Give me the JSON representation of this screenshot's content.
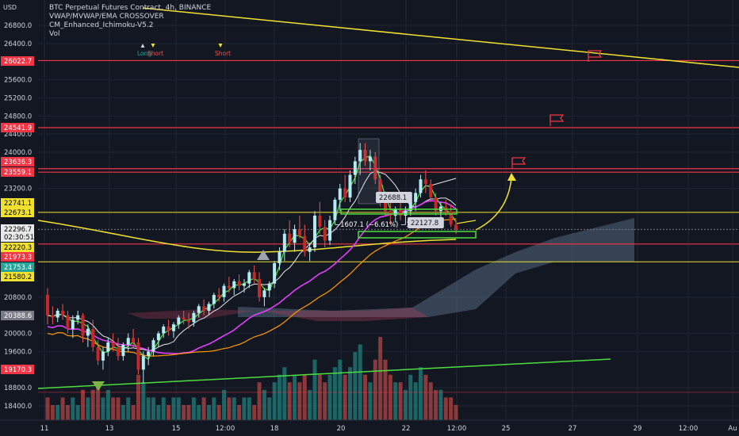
{
  "header": {
    "currency": "USD",
    "title": "BTC Perpetual Futures Contract, 4h, BINANCE",
    "indicators": [
      "VWAP/MVWAP/EMA CROSSOVER",
      "CM_Enhanced_Ichimoku-V5.2",
      "Vol"
    ]
  },
  "signals": [
    {
      "label": "Long",
      "color": "#26a69a",
      "marker": "triangle-up",
      "x_tick": "11"
    },
    {
      "label": "Short",
      "color": "#ef5350",
      "marker": "triangle-down",
      "x_tick": "11"
    },
    {
      "label": "Short",
      "color": "#ef5350",
      "marker": "triangle-down",
      "x_tick": "13"
    }
  ],
  "chart_data": {
    "type": "candlestick",
    "xlabel": "",
    "ylabel": "",
    "ylim": [
      18200,
      27000
    ],
    "y_ticks": [
      26800,
      26400,
      25600,
      25200,
      24800,
      24400,
      24000,
      23200,
      20800,
      20000,
      19600,
      18800,
      18400
    ],
    "x_ticks": [
      "11",
      "13",
      "15",
      "12:00",
      "18",
      "20",
      "22",
      "12:00",
      "25",
      "27",
      "29",
      "12:00",
      "Au"
    ],
    "price_labels": [
      {
        "value": "26022.7",
        "bg": "#f23645",
        "fg": "#ffffff"
      },
      {
        "value": "24541.9",
        "bg": "#f23645",
        "fg": "#ffffff"
      },
      {
        "value": "23636.3",
        "bg": "#f23645",
        "fg": "#ffffff"
      },
      {
        "value": "23559.1",
        "bg": "#f23645",
        "fg": "#ffffff"
      },
      {
        "value": "22741.1",
        "bg": "#f0e130",
        "fg": "#000000"
      },
      {
        "value": "22673.1",
        "bg": "#f0e130",
        "fg": "#000000"
      },
      {
        "value": "22296.7",
        "bg": "#e8e8e8",
        "fg": "#000000"
      },
      {
        "value": "02:30:51",
        "bg": "#e8e8e8",
        "fg": "#000000"
      },
      {
        "value": "22220.3",
        "bg": "#f0e130",
        "fg": "#000000"
      },
      {
        "value": "21973.3",
        "bg": "#f23645",
        "fg": "#ffffff"
      },
      {
        "value": "21753.4",
        "bg": "#26a69a",
        "fg": "#ffffff"
      },
      {
        "value": "21580.2",
        "bg": "#f0e130",
        "fg": "#000000"
      },
      {
        "value": "20388.6",
        "bg": "#787b86",
        "fg": "#ffffff"
      },
      {
        "value": "19170.3",
        "bg": "#f23645",
        "fg": "#ffffff"
      }
    ],
    "resistance_lines": [
      26022.7,
      24541.9,
      23636.3,
      23559.1,
      21973.3
    ],
    "support_lines": [
      22673.1,
      21580.2
    ],
    "annotations": [
      {
        "text": "22688.1",
        "value": 22688.1
      },
      {
        "text": "−1607.1 (−6.61%) −16071",
        "value": 22300
      },
      {
        "text": "22127.8",
        "value": 22127.8
      }
    ],
    "candles": [
      {
        "o": 20850,
        "h": 21000,
        "l": 20200,
        "c": 20400
      },
      {
        "o": 20400,
        "h": 20600,
        "l": 20200,
        "c": 20350
      },
      {
        "o": 20350,
        "h": 20550,
        "l": 20250,
        "c": 20500
      },
      {
        "o": 20500,
        "h": 20650,
        "l": 20300,
        "c": 20400
      },
      {
        "o": 20400,
        "h": 20500,
        "l": 20000,
        "c": 20100
      },
      {
        "o": 20100,
        "h": 20400,
        "l": 19900,
        "c": 20300
      },
      {
        "o": 20300,
        "h": 20500,
        "l": 20200,
        "c": 20400
      },
      {
        "o": 20400,
        "h": 20450,
        "l": 19800,
        "c": 19950
      },
      {
        "o": 19950,
        "h": 20200,
        "l": 19700,
        "c": 20100
      },
      {
        "o": 20100,
        "h": 20300,
        "l": 19600,
        "c": 19700
      },
      {
        "o": 19700,
        "h": 19850,
        "l": 19300,
        "c": 19400
      },
      {
        "o": 19400,
        "h": 19700,
        "l": 19200,
        "c": 19600
      },
      {
        "o": 19600,
        "h": 19900,
        "l": 19500,
        "c": 19800
      },
      {
        "o": 19800,
        "h": 20000,
        "l": 19600,
        "c": 19700
      },
      {
        "o": 19700,
        "h": 19900,
        "l": 19400,
        "c": 19500
      },
      {
        "o": 19500,
        "h": 19800,
        "l": 19400,
        "c": 19750
      },
      {
        "o": 19750,
        "h": 20000,
        "l": 19600,
        "c": 19900
      },
      {
        "o": 19900,
        "h": 20100,
        "l": 19700,
        "c": 19800
      },
      {
        "o": 19800,
        "h": 19900,
        "l": 19100,
        "c": 19200
      },
      {
        "o": 19200,
        "h": 19600,
        "l": 18900,
        "c": 19500
      },
      {
        "o": 19500,
        "h": 19700,
        "l": 19300,
        "c": 19600
      },
      {
        "o": 19600,
        "h": 19900,
        "l": 19500,
        "c": 19850
      },
      {
        "o": 19850,
        "h": 20050,
        "l": 19700,
        "c": 20000
      },
      {
        "o": 20000,
        "h": 20200,
        "l": 19900,
        "c": 20150
      },
      {
        "o": 20150,
        "h": 20300,
        "l": 19950,
        "c": 20050
      },
      {
        "o": 20050,
        "h": 20250,
        "l": 19900,
        "c": 20200
      },
      {
        "o": 20200,
        "h": 20400,
        "l": 20100,
        "c": 20350
      },
      {
        "o": 20350,
        "h": 20500,
        "l": 20200,
        "c": 20300
      },
      {
        "o": 20300,
        "h": 20450,
        "l": 20100,
        "c": 20250
      },
      {
        "o": 20250,
        "h": 20500,
        "l": 20150,
        "c": 20450
      },
      {
        "o": 20450,
        "h": 20650,
        "l": 20350,
        "c": 20600
      },
      {
        "o": 20600,
        "h": 20750,
        "l": 20400,
        "c": 20500
      },
      {
        "o": 20500,
        "h": 20700,
        "l": 20400,
        "c": 20650
      },
      {
        "o": 20650,
        "h": 20900,
        "l": 20550,
        "c": 20850
      },
      {
        "o": 20850,
        "h": 21000,
        "l": 20700,
        "c": 20800
      },
      {
        "o": 20800,
        "h": 21100,
        "l": 20700,
        "c": 21050
      },
      {
        "o": 21050,
        "h": 21250,
        "l": 20900,
        "c": 21000
      },
      {
        "o": 21000,
        "h": 21200,
        "l": 20850,
        "c": 21150
      },
      {
        "o": 21150,
        "h": 21300,
        "l": 20950,
        "c": 21050
      },
      {
        "o": 21050,
        "h": 21200,
        "l": 20900,
        "c": 21100
      },
      {
        "o": 21100,
        "h": 21400,
        "l": 21000,
        "c": 21350
      },
      {
        "o": 21350,
        "h": 21500,
        "l": 21100,
        "c": 21200
      },
      {
        "o": 21200,
        "h": 21350,
        "l": 20700,
        "c": 20800
      },
      {
        "o": 20800,
        "h": 21000,
        "l": 20600,
        "c": 20950
      },
      {
        "o": 20950,
        "h": 21150,
        "l": 20800,
        "c": 21100
      },
      {
        "o": 21100,
        "h": 21600,
        "l": 21000,
        "c": 21550
      },
      {
        "o": 21550,
        "h": 21900,
        "l": 21400,
        "c": 21800
      },
      {
        "o": 21800,
        "h": 22300,
        "l": 21600,
        "c": 22200
      },
      {
        "o": 22200,
        "h": 22500,
        "l": 21900,
        "c": 22000
      },
      {
        "o": 22000,
        "h": 22400,
        "l": 21800,
        "c": 22300
      },
      {
        "o": 22300,
        "h": 22600,
        "l": 22100,
        "c": 22150
      },
      {
        "o": 22150,
        "h": 22400,
        "l": 21700,
        "c": 21800
      },
      {
        "o": 21800,
        "h": 22000,
        "l": 21600,
        "c": 21900
      },
      {
        "o": 21900,
        "h": 22700,
        "l": 21800,
        "c": 22600
      },
      {
        "o": 22600,
        "h": 22900,
        "l": 22200,
        "c": 22350
      },
      {
        "o": 22350,
        "h": 22500,
        "l": 21900,
        "c": 22050
      },
      {
        "o": 22050,
        "h": 22600,
        "l": 21950,
        "c": 22500
      },
      {
        "o": 22500,
        "h": 23000,
        "l": 22400,
        "c": 22950
      },
      {
        "o": 22950,
        "h": 23300,
        "l": 22700,
        "c": 23200
      },
      {
        "o": 23200,
        "h": 23500,
        "l": 22900,
        "c": 23000
      },
      {
        "o": 23000,
        "h": 23600,
        "l": 22900,
        "c": 23500
      },
      {
        "o": 23500,
        "h": 23900,
        "l": 23300,
        "c": 23800
      },
      {
        "o": 23800,
        "h": 24200,
        "l": 23500,
        "c": 24050
      },
      {
        "o": 24050,
        "h": 24200,
        "l": 23700,
        "c": 23800
      },
      {
        "o": 23800,
        "h": 24050,
        "l": 23600,
        "c": 23900
      },
      {
        "o": 23900,
        "h": 24000,
        "l": 23300,
        "c": 23400
      },
      {
        "o": 23400,
        "h": 23500,
        "l": 22800,
        "c": 22950
      },
      {
        "o": 22950,
        "h": 23100,
        "l": 22600,
        "c": 22700
      },
      {
        "o": 22700,
        "h": 22900,
        "l": 22400,
        "c": 22600
      },
      {
        "o": 22600,
        "h": 22800,
        "l": 22450,
        "c": 22750
      },
      {
        "o": 22750,
        "h": 22950,
        "l": 22500,
        "c": 22600
      },
      {
        "o": 22600,
        "h": 22800,
        "l": 22400,
        "c": 22700
      },
      {
        "o": 22700,
        "h": 23000,
        "l": 22600,
        "c": 22900
      },
      {
        "o": 22900,
        "h": 23200,
        "l": 22700,
        "c": 23100
      },
      {
        "o": 23100,
        "h": 23500,
        "l": 23000,
        "c": 23400
      },
      {
        "o": 23400,
        "h": 23600,
        "l": 23100,
        "c": 23300
      },
      {
        "o": 23300,
        "h": 23400,
        "l": 22900,
        "c": 23000
      },
      {
        "o": 23000,
        "h": 23100,
        "l": 22600,
        "c": 22700
      },
      {
        "o": 22700,
        "h": 22900,
        "l": 22500,
        "c": 22800
      },
      {
        "o": 22800,
        "h": 22950,
        "l": 22600,
        "c": 22700
      },
      {
        "o": 22700,
        "h": 22850,
        "l": 22350,
        "c": 22400
      },
      {
        "o": 22400,
        "h": 22500,
        "l": 22200,
        "c": 22297
      }
    ],
    "volumes": [
      3,
      2,
      2,
      3,
      2,
      3,
      2,
      4,
      3,
      4,
      5,
      3,
      4,
      3,
      3,
      2,
      3,
      2,
      6,
      5,
      3,
      3,
      2,
      3,
      2,
      3,
      3,
      2,
      2,
      3,
      2,
      3,
      2,
      3,
      2,
      4,
      3,
      3,
      2,
      3,
      3,
      2,
      5,
      4,
      3,
      5,
      6,
      7,
      5,
      6,
      5,
      6,
      4,
      8,
      6,
      5,
      6,
      7,
      8,
      6,
      7,
      9,
      10,
      6,
      5,
      8,
      11,
      8,
      6,
      5,
      5,
      4,
      6,
      5,
      7,
      6,
      5,
      4,
      4,
      3,
      3,
      2
    ]
  }
}
